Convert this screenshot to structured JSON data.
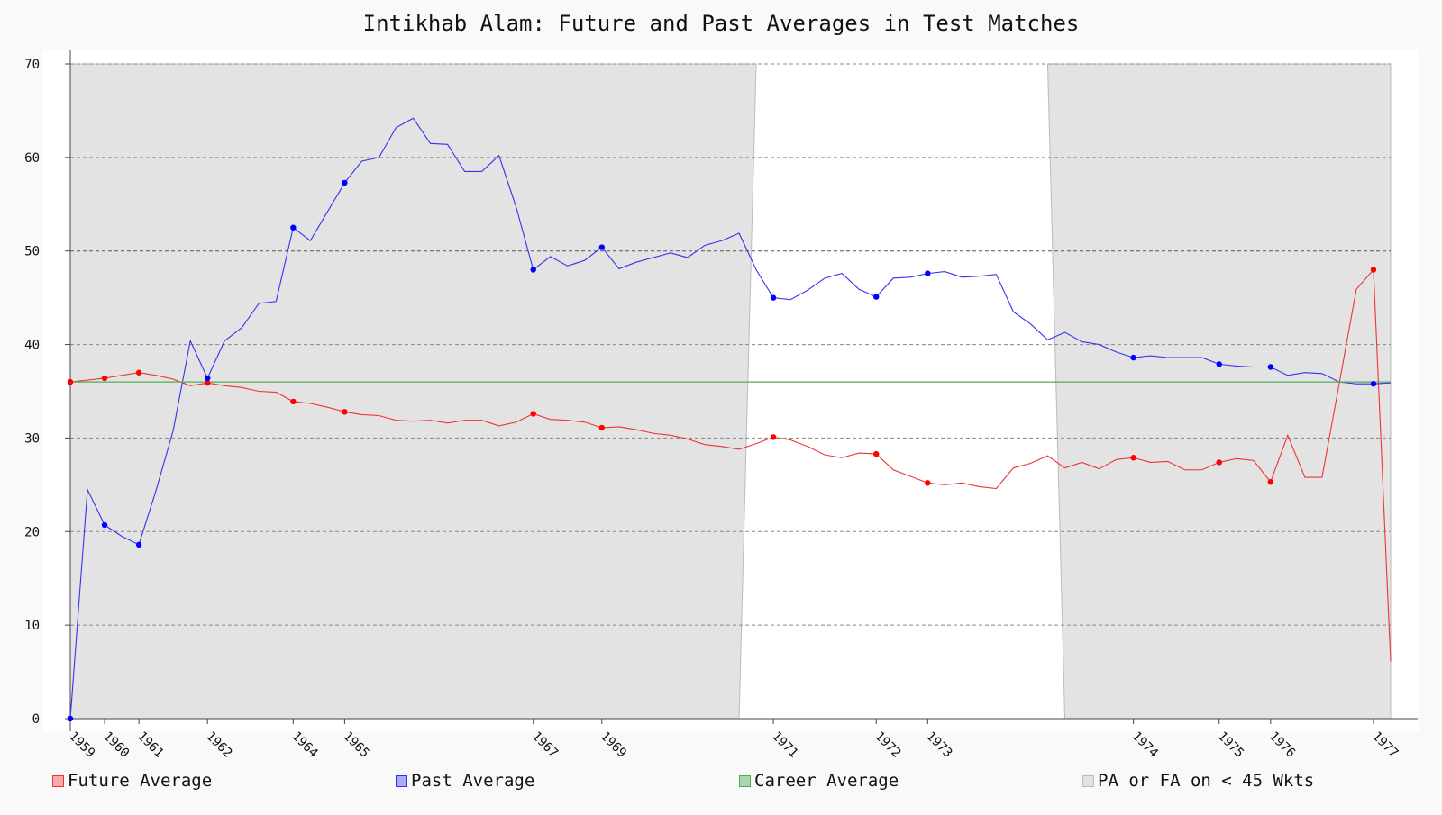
{
  "chart_data": {
    "type": "line",
    "title": "Intikhab Alam: Future and Past Averages in Test Matches",
    "xlabel": "",
    "ylabel": "",
    "ylim": [
      0,
      70
    ],
    "yticks": [
      0,
      10,
      20,
      30,
      40,
      50,
      60,
      70
    ],
    "grid": true,
    "legend_position": "bottom",
    "x_match_range": [
      1,
      78
    ],
    "x_tick_labels": [
      {
        "match": 1,
        "label": "1959"
      },
      {
        "match": 3,
        "label": "1960"
      },
      {
        "match": 5,
        "label": "1961"
      },
      {
        "match": 9,
        "label": "1962"
      },
      {
        "match": 14,
        "label": "1964"
      },
      {
        "match": 17,
        "label": "1965"
      },
      {
        "match": 28,
        "label": "1967"
      },
      {
        "match": 32,
        "label": "1969"
      },
      {
        "match": 42,
        "label": "1971"
      },
      {
        "match": 48,
        "label": "1972"
      },
      {
        "match": 51,
        "label": "1973"
      },
      {
        "match": 63,
        "label": "1974"
      },
      {
        "match": 68,
        "label": "1975"
      },
      {
        "match": 71,
        "label": "1976"
      },
      {
        "match": 77,
        "label": "1977"
      }
    ],
    "series": [
      {
        "name": "Future Average",
        "color": "#ee3333",
        "values": [
          36.0,
          36.2,
          36.4,
          36.7,
          37.0,
          36.7,
          36.3,
          35.6,
          35.9,
          35.6,
          35.4,
          35.0,
          34.9,
          33.9,
          33.7,
          33.3,
          32.8,
          32.5,
          32.4,
          31.9,
          31.8,
          31.9,
          31.6,
          31.9,
          31.9,
          31.3,
          31.7,
          32.6,
          32.0,
          31.9,
          31.7,
          31.1,
          31.2,
          30.9,
          30.5,
          30.3,
          29.9,
          29.3,
          29.1,
          28.8,
          29.4,
          30.1,
          29.8,
          29.1,
          28.2,
          27.9,
          28.4,
          28.3,
          26.6,
          25.9,
          25.2,
          25.0,
          25.2,
          24.8,
          24.6,
          26.8,
          27.3,
          28.1,
          26.8,
          27.4,
          26.7,
          27.7,
          27.9,
          27.4,
          27.5,
          26.6,
          26.6,
          27.4,
          27.8,
          27.6,
          25.3,
          30.3,
          25.8,
          25.8,
          35.8,
          45.9,
          48.0,
          6.1
        ]
      },
      {
        "name": "Past Average",
        "color": "#3333ee",
        "values": [
          0.0,
          24.5,
          20.7,
          19.5,
          18.6,
          24.4,
          30.8,
          40.4,
          36.4,
          40.4,
          41.8,
          44.4,
          44.6,
          52.5,
          51.1,
          54.2,
          57.3,
          59.6,
          60.0,
          63.2,
          64.2,
          61.5,
          61.4,
          58.5,
          58.5,
          60.2,
          54.7,
          48.0,
          49.4,
          48.4,
          49.0,
          50.4,
          48.1,
          48.8,
          49.3,
          49.8,
          49.3,
          50.6,
          51.1,
          51.9,
          48.0,
          45.0,
          44.8,
          45.8,
          47.1,
          47.6,
          45.9,
          45.1,
          47.1,
          47.2,
          47.6,
          47.8,
          47.2,
          47.3,
          47.5,
          43.5,
          42.2,
          40.5,
          41.3,
          40.3,
          40.0,
          39.2,
          38.6,
          38.8,
          38.6,
          38.6,
          38.6,
          37.9,
          37.7,
          37.6,
          37.6,
          36.7,
          37.0,
          36.9,
          36.0,
          35.8,
          35.8,
          35.9
        ]
      },
      {
        "name": "Career Average",
        "color": "#55aa55",
        "constant": 36.0
      }
    ],
    "markers_at_matches": [
      1,
      3,
      5,
      9,
      14,
      17,
      28,
      32,
      42,
      48,
      51,
      63,
      68,
      71,
      77
    ],
    "shaded_band": {
      "name": "PA or FA on < 45 Wkts",
      "color": "#e3e3e3",
      "regions": [
        {
          "from_match": 1,
          "to_match": 40,
          "taper_to": 41
        },
        {
          "from_match": 59,
          "to_match": 78,
          "taper_from": 58
        }
      ]
    }
  },
  "legend": [
    {
      "label": "Future Average",
      "fill": "#f6aaaa",
      "stroke": "#ee3333"
    },
    {
      "label": "Past Average",
      "fill": "#aaaaf6",
      "stroke": "#3333ee"
    },
    {
      "label": "Career Average",
      "fill": "#aad4aa",
      "stroke": "#55aa55"
    },
    {
      "label": "PA or FA on < 45 Wkts",
      "fill": "#e3e3e3",
      "stroke": "#bbbbbb"
    }
  ]
}
